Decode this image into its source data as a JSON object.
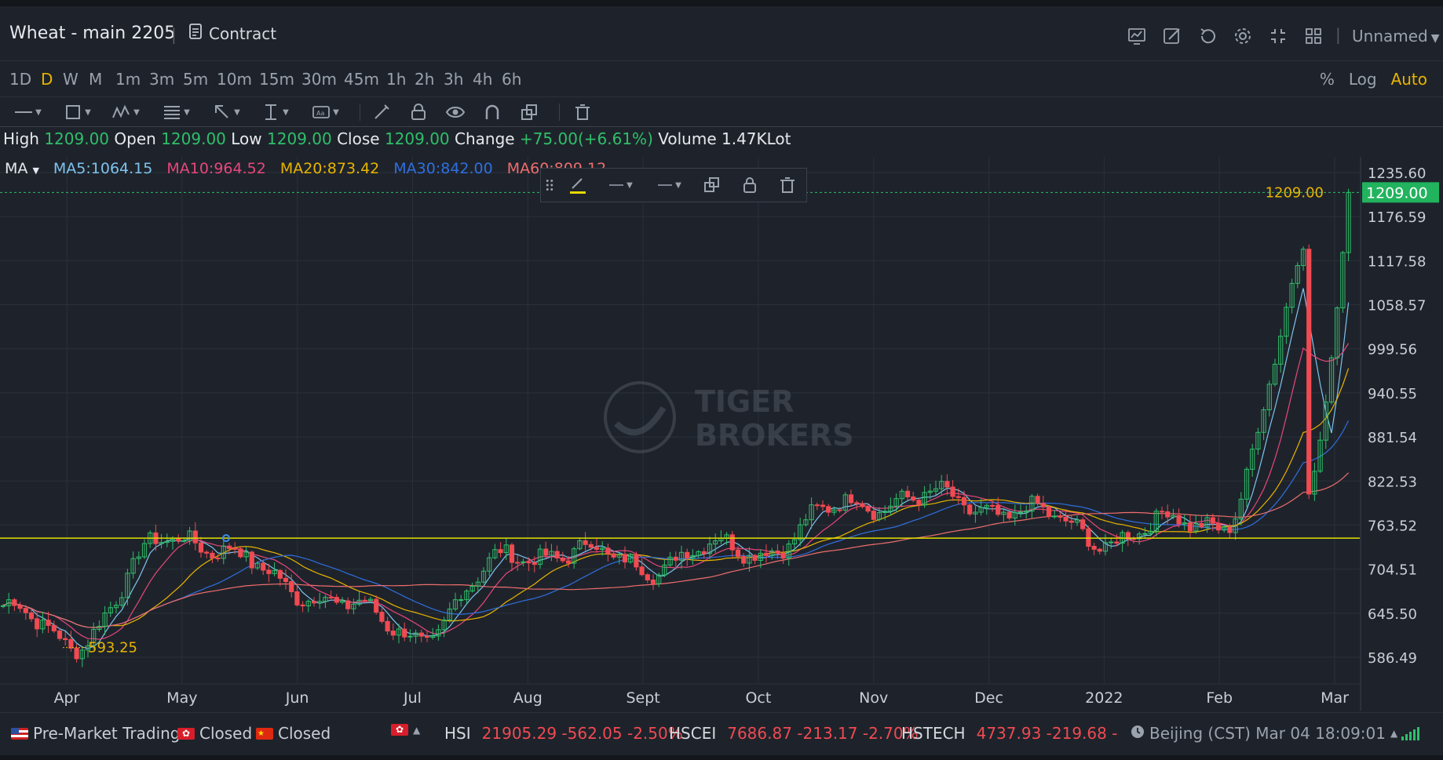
{
  "header": {
    "title": "Wheat - main 2205",
    "contract_label": "Contract",
    "layout_name": "Unnamed",
    "icons": [
      "chart-type-icon",
      "draw-icon",
      "replay-icon",
      "settings-icon",
      "fullscreen-icon",
      "layout-grid-icon"
    ]
  },
  "intervals": {
    "items": [
      "1D",
      "D",
      "W",
      "M",
      "1m",
      "3m",
      "5m",
      "10m",
      "15m",
      "30m",
      "45m",
      "1h",
      "2h",
      "3h",
      "4h",
      "6h"
    ],
    "active": "D",
    "scale_options": [
      "%",
      "Log",
      "Auto"
    ],
    "active_scale": "Auto"
  },
  "drawing_toolbar": {
    "tools": [
      "line-tool-icon",
      "rectangle-tool-icon",
      "pattern-tool-icon",
      "fib-tool-icon",
      "arrow-tool-icon",
      "measure-tool-icon",
      "text-tool-icon",
      "brush-icon",
      "lock-icon",
      "visibility-icon",
      "magnet-icon",
      "clone-icon",
      "trash-icon"
    ]
  },
  "ohlc": {
    "high_label": "High",
    "high": "1209.00",
    "open_label": "Open",
    "open": "1209.00",
    "low_label": "Low",
    "low": "1209.00",
    "close_label": "Close",
    "close": "1209.00",
    "change_label": "Change",
    "change": "+75.00(+6.61%)",
    "volume_label": "Volume",
    "volume": "1.47KLot"
  },
  "ma_legend": {
    "label": "MA",
    "items": [
      {
        "text": "MA5:1064.15",
        "color": "#7ec3ee"
      },
      {
        "text": "MA10:964.52",
        "color": "#e8467c"
      },
      {
        "text": "MA20:873.42",
        "color": "#e8b400"
      },
      {
        "text": "MA30:842.00",
        "color": "#2f6fe0"
      },
      {
        "text": "MA60:809.12",
        "color": "#f06d6d"
      }
    ]
  },
  "colors": {
    "up": "#2fbf6a",
    "down": "#f04a52",
    "accent": "#e8b400",
    "grid": "#2a3039",
    "horizontal_line": "#e3e000"
  },
  "chart_data": {
    "type": "candlestick",
    "title": "",
    "x_axis_labels": [
      "Apr",
      "May",
      "Jun",
      "Jul",
      "Aug",
      "Sept",
      "Oct",
      "Nov",
      "Dec",
      "2022",
      "Feb",
      "Mar"
    ],
    "y_axis_labels": [
      "1235.60",
      "1176.59",
      "1117.58",
      "1058.57",
      "999.56",
      "940.55",
      "881.54",
      "822.53",
      "763.52",
      "704.51",
      "645.50",
      "586.49"
    ],
    "ylim": [
      560,
      1250
    ],
    "last_price": "1209.00",
    "last_price_line_label": "1209.00",
    "low_marker": "593.25",
    "horizontal_line_level": 746,
    "closes_monthly_approx": [
      {
        "x": "Mar",
        "close": 650
      },
      {
        "x": "Apr",
        "close": 610
      },
      {
        "x": "May",
        "close": 752
      },
      {
        "x": "Jun",
        "close": 680
      },
      {
        "x": "Jul",
        "close": 620
      },
      {
        "x": "Aug",
        "close": 730
      },
      {
        "x": "Sept",
        "close": 715
      },
      {
        "x": "Oct",
        "close": 735
      },
      {
        "x": "Nov",
        "close": 800
      },
      {
        "x": "Dec",
        "close": 790
      },
      {
        "x": "2022",
        "close": 750
      },
      {
        "x": "Feb",
        "close": 770
      },
      {
        "x": "Mar",
        "close": 1209
      }
    ],
    "grid": true
  },
  "watermark": {
    "line1": "TIGER",
    "line2": "BROKERS"
  },
  "floating_toolbar": {
    "tools": [
      "drag-handle-icon",
      "line-color-icon",
      "line-style-icon",
      "line-width-icon",
      "clone-icon",
      "lock-icon",
      "trash-icon"
    ]
  },
  "status_bar": {
    "us_label": "Pre-Market Trading",
    "hk_label": "Closed",
    "cn_label": "Closed",
    "indices": [
      {
        "name": "HSI",
        "value": "21905.29 -562.05 -2.50%"
      },
      {
        "name": "HSCEI",
        "value": "7686.87 -213.17 -2.70%"
      },
      {
        "name": "HSTECH",
        "value": "4737.93 -219.68 -"
      }
    ],
    "clock": "Beijing (CST) Mar 04 18:09:01"
  }
}
